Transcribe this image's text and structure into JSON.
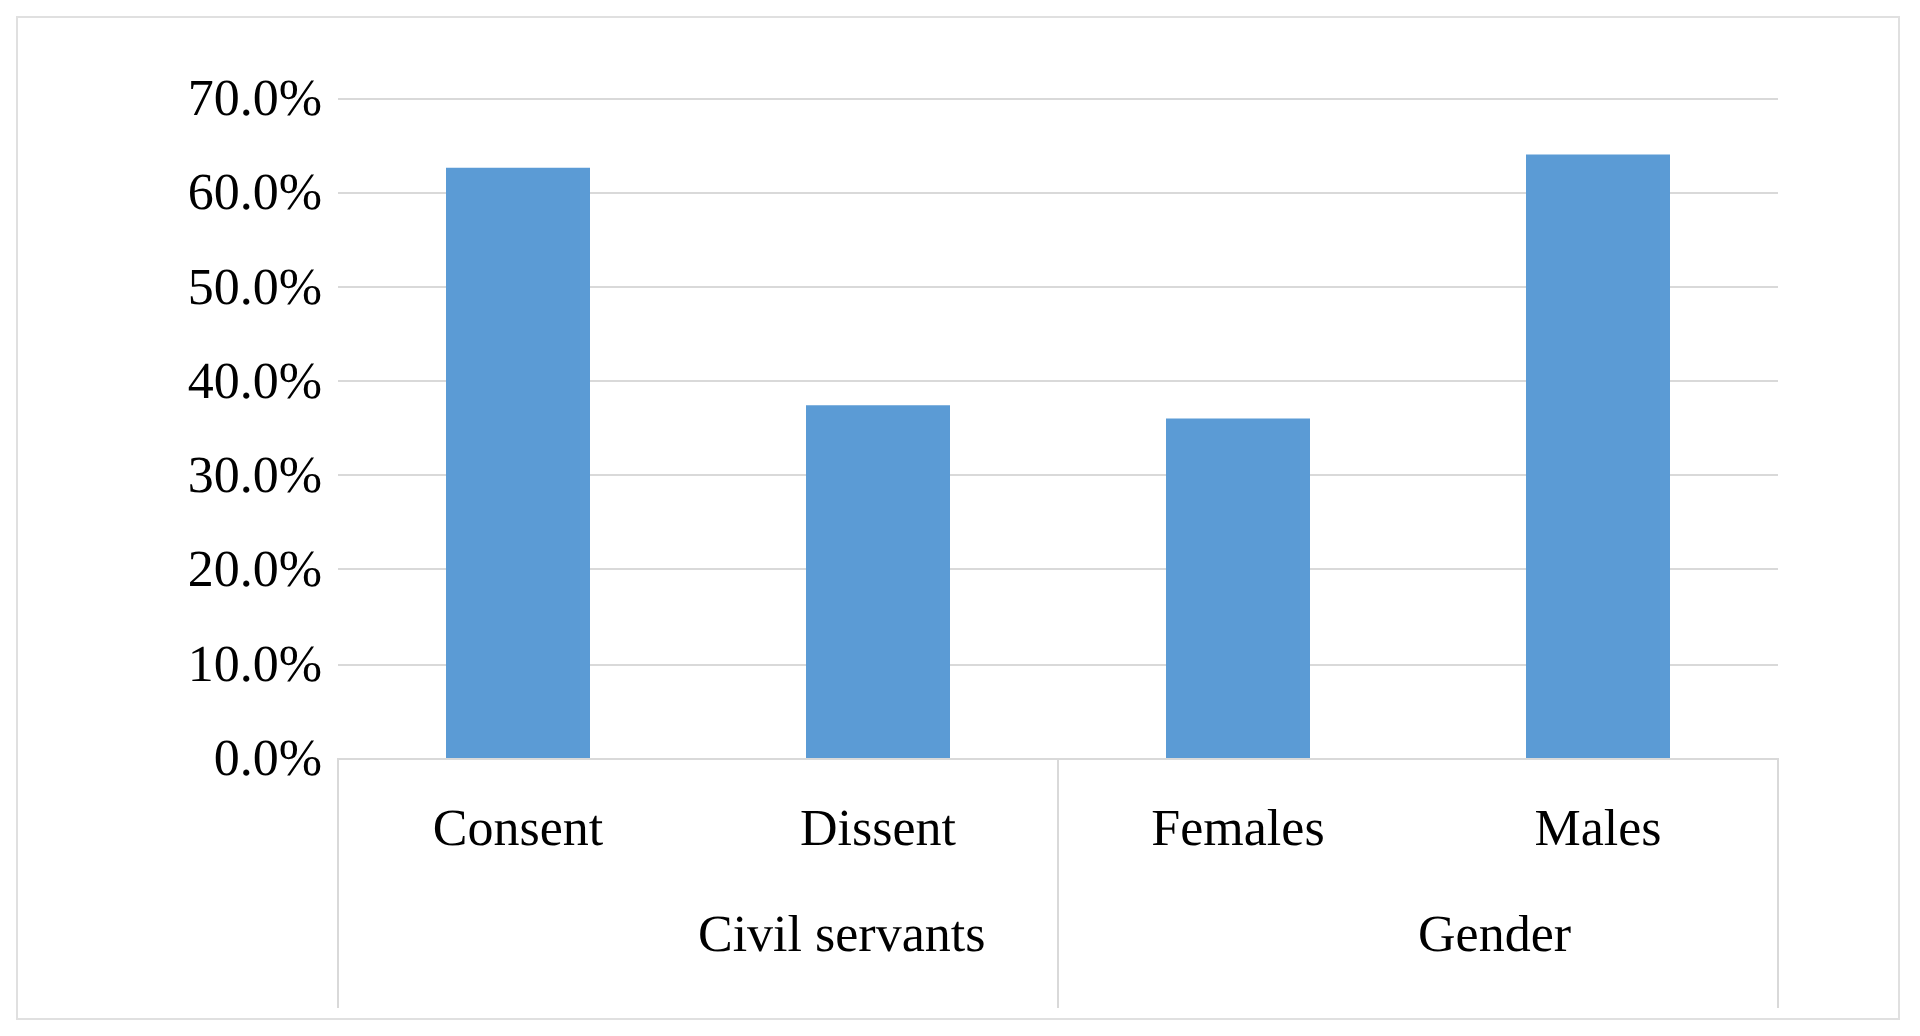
{
  "chart_data": {
    "type": "bar",
    "categories": [
      "Consent",
      "Dissent",
      "Females",
      "Males"
    ],
    "values": [
      62.6,
      37.4,
      36,
      64
    ],
    "color": "#5b9bd5",
    "ylim": [
      0,
      70
    ],
    "yticks": [
      {
        "value": 0,
        "label": "0.0%"
      },
      {
        "value": 10,
        "label": "10.0%"
      },
      {
        "value": 20,
        "label": "20.0%"
      },
      {
        "value": 30,
        "label": "30.0%"
      },
      {
        "value": 40,
        "label": "40.0%"
      },
      {
        "value": 50,
        "label": "50.0%"
      },
      {
        "value": 60,
        "label": "60.0%"
      },
      {
        "value": 70,
        "label": "70.0%"
      }
    ],
    "grid": "y",
    "annotations": [
      "Civil servants",
      "Gender"
    ]
  }
}
